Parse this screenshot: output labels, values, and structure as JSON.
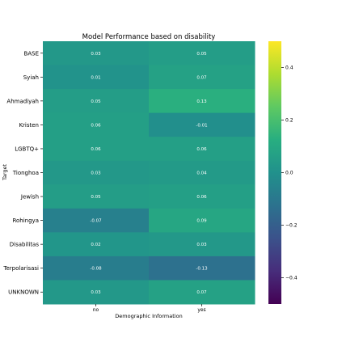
{
  "chart_data": {
    "type": "heatmap",
    "title": "Model Performance based on disability",
    "xlabel": "Demographic Information",
    "ylabel": "Target",
    "x_categories": [
      "no",
      "yes"
    ],
    "y_categories": [
      "BASE",
      "Syiah",
      "Ahmadiyah",
      "Kristen",
      "LGBTQ+",
      "Tionghoa",
      "Jewish",
      "Rohingya",
      "Disabilitas",
      "Terpolarisasi",
      "UNKNOWN"
    ],
    "values": [
      [
        0.03,
        0.05
      ],
      [
        0.01,
        0.07
      ],
      [
        0.05,
        0.13
      ],
      [
        0.06,
        -0.01
      ],
      [
        0.06,
        0.06
      ],
      [
        0.03,
        0.04
      ],
      [
        0.05,
        0.06
      ],
      [
        -0.07,
        0.09
      ],
      [
        0.02,
        0.03
      ],
      [
        -0.08,
        -0.13
      ],
      [
        0.03,
        0.07
      ]
    ],
    "colorbar": {
      "min": -0.5,
      "max": 0.5,
      "ticks": [
        0.4,
        0.2,
        0.0,
        -0.2,
        -0.4
      ],
      "tick_labels": [
        "0.4",
        "0.2",
        "0.0",
        "−0.2",
        "−0.4"
      ],
      "colormap": "viridis"
    },
    "annot_color": "#ffffff",
    "grid": false
  }
}
